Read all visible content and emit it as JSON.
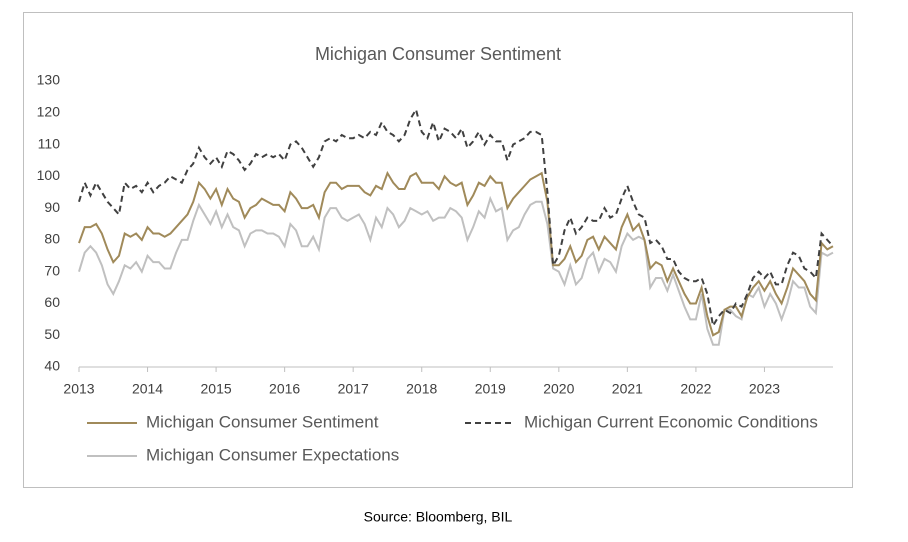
{
  "chart_data": {
    "type": "line",
    "title": "Michigan Consumer Sentiment",
    "source": "Source: Bloomberg, BIL",
    "categories": [
      "2013",
      null,
      null,
      null,
      null,
      null,
      null,
      null,
      null,
      null,
      null,
      null,
      "2014",
      null,
      null,
      null,
      null,
      null,
      null,
      null,
      null,
      null,
      null,
      null,
      "2015",
      null,
      null,
      null,
      null,
      null,
      null,
      null,
      null,
      null,
      null,
      null,
      "2016",
      null,
      null,
      null,
      null,
      null,
      null,
      null,
      null,
      null,
      null,
      null,
      "2017",
      null,
      null,
      null,
      null,
      null,
      null,
      null,
      null,
      null,
      null,
      null,
      "2018",
      null,
      null,
      null,
      null,
      null,
      null,
      null,
      null,
      null,
      null,
      null,
      "2019",
      null,
      null,
      null,
      null,
      null,
      null,
      null,
      null,
      null,
      null,
      null,
      "2020",
      null,
      null,
      null,
      null,
      null,
      null,
      null,
      null,
      null,
      null,
      null,
      "2021",
      null,
      null,
      null,
      null,
      null,
      null,
      null,
      null,
      null,
      null,
      null,
      "2022",
      null,
      null,
      null,
      null,
      null,
      null,
      null,
      null,
      null,
      null,
      null,
      "2023",
      null,
      null,
      null,
      null,
      null,
      null,
      null,
      null,
      null,
      null,
      null,
      null
    ],
    "series": [
      {
        "name": "Michigan Consumer Sentiment",
        "color": "#a08a5a",
        "line_style": "solid",
        "values": [
          79,
          84,
          84,
          85,
          82,
          77,
          73,
          75,
          82,
          81,
          82,
          80,
          84,
          82,
          82,
          81,
          82,
          84,
          86,
          88,
          92,
          98,
          96,
          93,
          96,
          91,
          96,
          93,
          92,
          87,
          90,
          91,
          93,
          92,
          91,
          91,
          89,
          95,
          93,
          90,
          90,
          91,
          87,
          95,
          98,
          98,
          96,
          97,
          97,
          97,
          95,
          94,
          97,
          96,
          101,
          98,
          96,
          96,
          100,
          101,
          98,
          98,
          98,
          96,
          100,
          98,
          97,
          98,
          91,
          94,
          98,
          97,
          100,
          98,
          98,
          90,
          93,
          95,
          97,
          99,
          100,
          101,
          92,
          72,
          72,
          74,
          78,
          73,
          75,
          80,
          81,
          77,
          81,
          79,
          77,
          84,
          88,
          83,
          85,
          80,
          71,
          73,
          72,
          67,
          71,
          67,
          63,
          60,
          60,
          65,
          56,
          50,
          51,
          58,
          59,
          59,
          56,
          62,
          65,
          67,
          64,
          67,
          63,
          60,
          65,
          71,
          69,
          67,
          63,
          61,
          79,
          77,
          78
        ]
      },
      {
        "name": "Michigan Current Economic Conditions",
        "color": "#404040",
        "line_style": "dashed",
        "values": [
          92,
          98,
          94,
          98,
          95,
          92,
          90,
          88,
          98,
          96,
          97,
          95,
          98,
          95,
          97,
          98,
          100,
          99,
          98,
          102,
          104,
          109,
          106,
          104,
          106,
          103,
          108,
          107,
          105,
          102,
          104,
          107,
          106,
          107,
          106,
          107,
          105,
          110,
          111,
          109,
          106,
          103,
          106,
          111,
          112,
          111,
          113,
          112,
          112,
          113,
          112,
          114,
          113,
          117,
          114,
          113,
          111,
          113,
          118,
          121,
          114,
          112,
          117,
          111,
          115,
          114,
          112,
          115,
          109,
          111,
          114,
          110,
          113,
          111,
          111,
          105,
          110,
          111,
          112,
          114,
          114,
          113,
          95,
          72,
          75,
          83,
          87,
          82,
          84,
          87,
          86,
          86,
          90,
          87,
          88,
          93,
          97,
          92,
          88,
          87,
          79,
          80,
          78,
          74,
          74,
          70,
          68,
          67,
          67,
          68,
          63,
          53,
          56,
          58,
          57,
          60,
          59,
          63,
          68,
          70,
          68,
          70,
          66,
          66,
          72,
          76,
          75,
          71,
          70,
          68,
          82,
          80,
          78
        ]
      },
      {
        "name": "Michigan Consumer Expectations",
        "color": "#c0c0c0",
        "line_style": "solid",
        "values": [
          70,
          76,
          78,
          76,
          72,
          66,
          63,
          67,
          72,
          71,
          73,
          70,
          75,
          73,
          73,
          71,
          71,
          76,
          80,
          80,
          86,
          91,
          88,
          85,
          89,
          84,
          88,
          84,
          83,
          78,
          82,
          83,
          83,
          82,
          82,
          81,
          78,
          85,
          83,
          78,
          78,
          81,
          77,
          87,
          90,
          90,
          87,
          86,
          87,
          88,
          85,
          80,
          87,
          84,
          90,
          88,
          84,
          86,
          90,
          89,
          88,
          89,
          86,
          87,
          87,
          90,
          89,
          87,
          80,
          84,
          89,
          87,
          93,
          89,
          90,
          80,
          83,
          84,
          88,
          91,
          92,
          92,
          85,
          71,
          70,
          66,
          72,
          66,
          68,
          74,
          76,
          70,
          74,
          73,
          70,
          78,
          82,
          80,
          81,
          80,
          65,
          68,
          68,
          64,
          69,
          64,
          59,
          55,
          55,
          63,
          52,
          47,
          47,
          58,
          58,
          56,
          55,
          63,
          62,
          65,
          59,
          63,
          60,
          55,
          60,
          67,
          65,
          65,
          59,
          57,
          76,
          75,
          76
        ]
      }
    ],
    "ylim": [
      40,
      130
    ],
    "yticks": [
      40,
      50,
      60,
      70,
      80,
      90,
      100,
      110,
      120,
      130
    ],
    "grid": false,
    "legend": "bottom"
  }
}
